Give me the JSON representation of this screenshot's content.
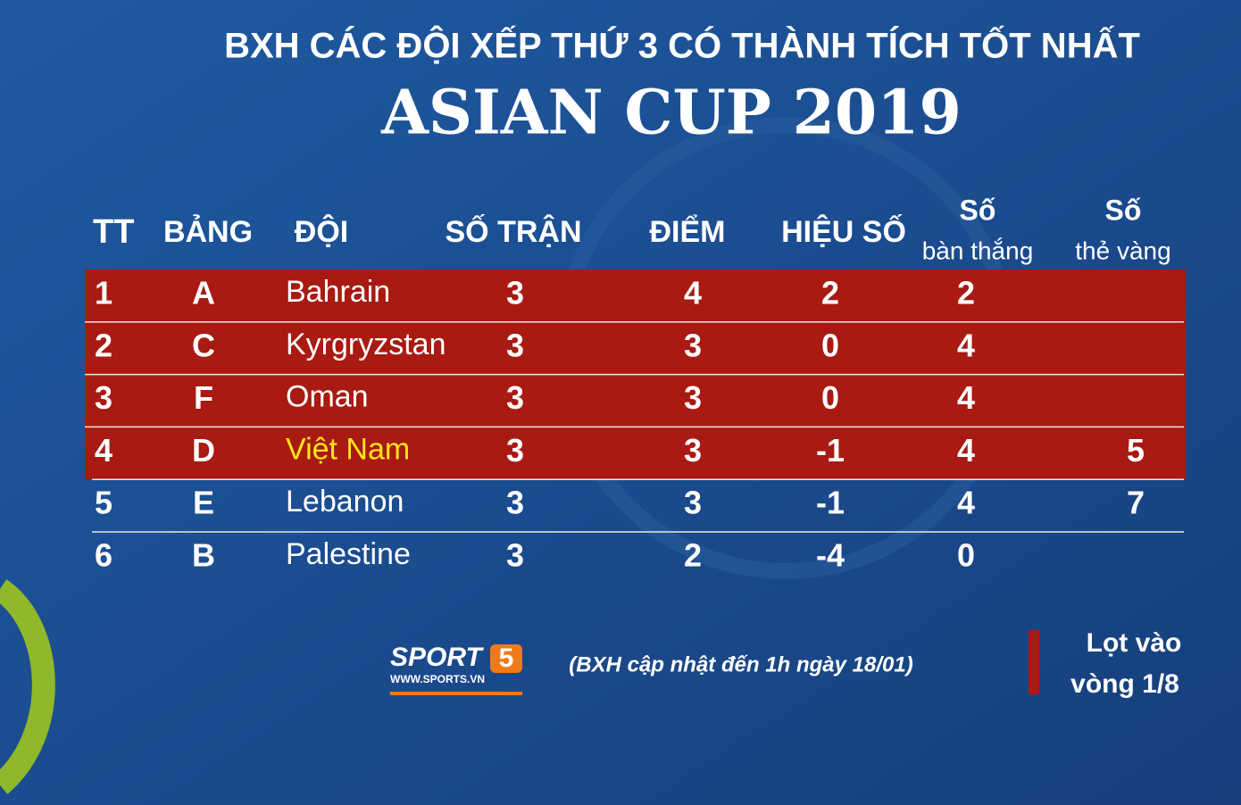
{
  "header": {
    "title": "BXH CÁC ĐỘI XẾP THỨ 3 CÓ THÀNH TÍCH TỐT NHẤT",
    "subtitle": "ASIAN CUP 2019"
  },
  "table": {
    "qualified_color": "#a81a12",
    "highlight_color": "#ffe31a",
    "columns": {
      "rank": "TT",
      "group": "BẢNG",
      "team": "ĐỘI",
      "played": "SỐ TRẬN",
      "points": "ĐIỂM",
      "gd": "HIỆU SỐ",
      "goals": [
        "Số",
        "bàn thắng"
      ],
      "cards": [
        "Số",
        "thẻ vàng"
      ]
    },
    "rows": [
      {
        "rank": 1,
        "group": "A",
        "team": "Bahrain",
        "played": 3,
        "points": 4,
        "gd": 2,
        "goals": 2,
        "qualified": true
      },
      {
        "rank": 2,
        "group": "C",
        "team": "Kyrgryzstan",
        "played": 3,
        "points": 3,
        "gd": 0,
        "goals": 4,
        "qualified": true
      },
      {
        "rank": 3,
        "group": "F",
        "team": "Oman",
        "played": 3,
        "points": 3,
        "gd": 0,
        "goals": 4,
        "qualified": true
      },
      {
        "rank": 4,
        "group": "D",
        "team": "Việt Nam",
        "played": 3,
        "points": 3,
        "gd": -1,
        "goals": 4,
        "cards": 5,
        "qualified": true,
        "highlighted": true
      },
      {
        "rank": 5,
        "group": "E",
        "team": "Lebanon",
        "played": 3,
        "points": 3,
        "gd": -1,
        "goals": 4,
        "cards": 7
      },
      {
        "rank": 6,
        "group": "B",
        "team": "Palestine",
        "played": 3,
        "points": 2,
        "gd": -4,
        "goals": 0
      }
    ]
  },
  "footer": {
    "logo": {
      "text": "SPORT",
      "badge": "5",
      "url": "WWW.SPORTS.VN"
    },
    "note": "(BXH cập nhật đến 1h ngày 18/01)",
    "legend": [
      "Lọt vào",
      "vòng 1/8"
    ]
  }
}
